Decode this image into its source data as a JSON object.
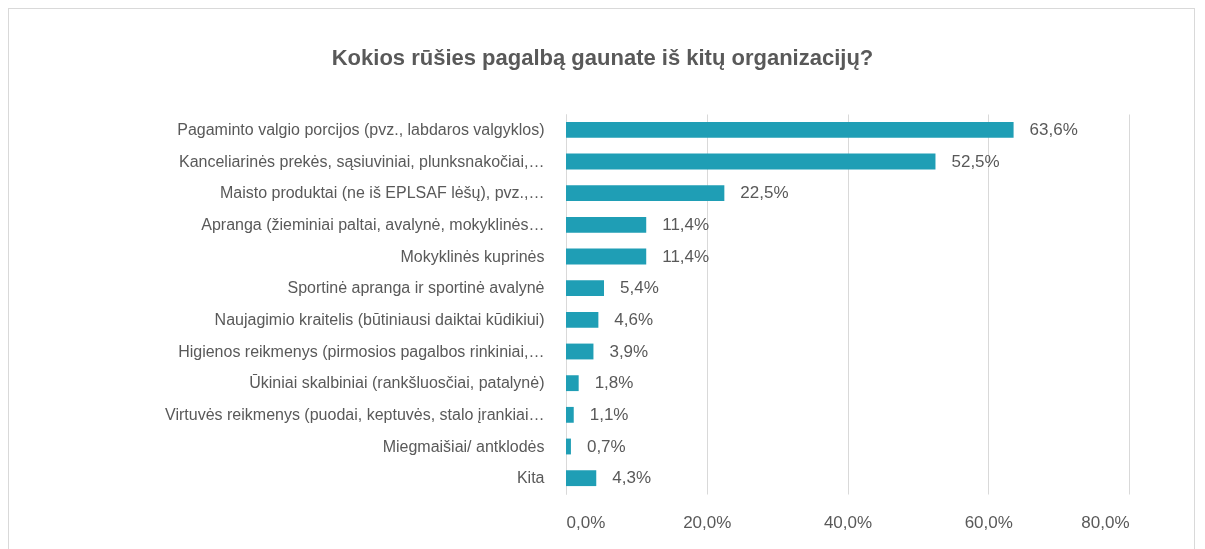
{
  "chart_data": {
    "type": "bar",
    "orientation": "horizontal",
    "title": "Kokios rūšies pagalbą gaunate iš kitų organizacijų?",
    "categories": [
      "Pagaminto valgio porcijos (pvz., labdaros valgyklos)",
      "Kanceliarinės prekės, sąsiuviniai, plunksnakočiai,…",
      "Maisto produktai (ne iš EPLSAF lėšų), pvz.,…",
      "Apranga (žieminiai paltai, avalynė, mokyklinės…",
      "Mokyklinės kuprinės",
      "Sportinė apranga ir sportinė avalynė",
      "Naujagimio kraitelis (būtiniausi daiktai kūdikiui)",
      "Higienos reikmenys (pirmosios pagalbos rinkiniai,…",
      "Ūkiniai skalbiniai (rankšluosčiai, patalynė)",
      "Virtuvės reikmenys (puodai, keptuvės, stalo įrankiai…",
      "Miegmaišiai/ antklodės",
      "Kita"
    ],
    "values": [
      63.6,
      52.5,
      22.5,
      11.4,
      11.4,
      5.4,
      4.6,
      3.9,
      1.8,
      1.1,
      0.7,
      4.3
    ],
    "value_labels": [
      "63,6%",
      "52,5%",
      "22,5%",
      "11,4%",
      "11,4%",
      "5,4%",
      "4,6%",
      "3,9%",
      "1,8%",
      "1,1%",
      "0,7%",
      "4,3%"
    ],
    "color": "#1f9eb5",
    "xlim": [
      0,
      80
    ],
    "xticks": [
      {
        "value": 0,
        "label": "0,0%"
      },
      {
        "value": 20,
        "label": "20,0%"
      },
      {
        "value": 40,
        "label": "40,0%"
      },
      {
        "value": 60,
        "label": "60,0%"
      },
      {
        "value": 80,
        "label": "80,0%"
      }
    ],
    "grid": "x"
  }
}
